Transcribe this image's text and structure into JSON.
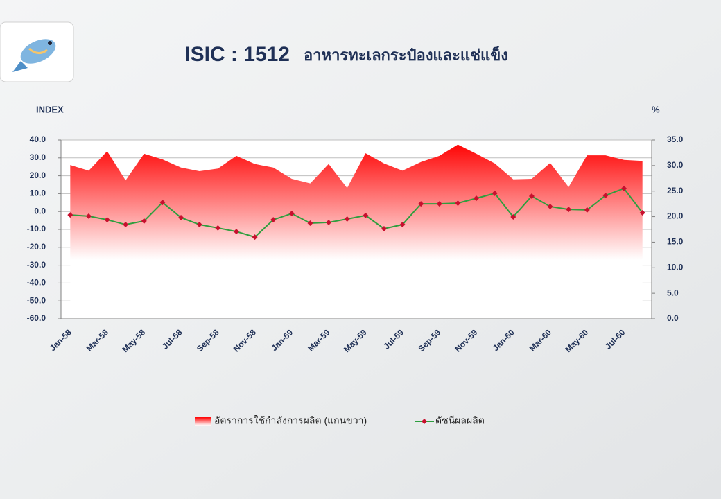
{
  "chart_data": {
    "type": "line-area",
    "title": "ISIC : 1512",
    "subtitle": "อาหารทะเลกระป๋องและแช่แข็ง",
    "ylabel": "INDEX",
    "y2label": "%",
    "categories": [
      "Jan-58",
      null,
      "Mar-58",
      null,
      "May-58",
      null,
      "Jul-58",
      null,
      "Sep-58",
      null,
      "Nov-58",
      null,
      "Jan-59",
      null,
      "Mar-59",
      null,
      "May-59",
      null,
      "Jul-59",
      null,
      "Sep-59",
      null,
      "Nov-59",
      null,
      "Jan-60",
      null,
      "Mar-60",
      null,
      "May-60",
      null,
      "Jul-60",
      null
    ],
    "series": [
      {
        "name": "อัตราการใช้กำลังการผลิต (แกนขวา)",
        "type": "area",
        "axis": "y2",
        "color": "#ff0000",
        "values": [
          30.1,
          29.0,
          32.8,
          27.1,
          32.3,
          31.2,
          29.6,
          28.9,
          29.4,
          31.9,
          30.3,
          29.6,
          27.4,
          26.5,
          30.3,
          25.6,
          32.4,
          30.4,
          29.0,
          30.7,
          31.9,
          34.1,
          32.3,
          30.4,
          27.3,
          27.4,
          30.5,
          25.8,
          32.0,
          32.0,
          31.1,
          30.9
        ]
      },
      {
        "name": "ดัชนีผลผลิต",
        "type": "line",
        "color": "#2e9e3e",
        "marker_color": "#c8102e",
        "values": [
          -1.9,
          -2.6,
          -4.6,
          -7.3,
          -5.3,
          5.1,
          -3.4,
          -7.3,
          -9.2,
          -11.2,
          -14.3,
          -4.6,
          -1.1,
          -6.5,
          -6.1,
          -4.2,
          -2.2,
          -9.6,
          -7.3,
          4.3,
          4.3,
          4.7,
          7.4,
          10.2,
          -3.0,
          8.6,
          2.8,
          1.2,
          0.9,
          9.0,
          12.9,
          -0.7
        ]
      }
    ],
    "ylim": [
      -60,
      40
    ],
    "yticks": [
      {
        "value": -60,
        "label": "-60.0"
      },
      {
        "value": -50,
        "label": "-50.0"
      },
      {
        "value": -40,
        "label": "-40.0"
      },
      {
        "value": -30,
        "label": "-30.0"
      },
      {
        "value": -20,
        "label": "-20.0"
      },
      {
        "value": -10,
        "label": "-10.0"
      },
      {
        "value": 0,
        "label": "0.0"
      },
      {
        "value": 10,
        "label": "10.0"
      },
      {
        "value": 20,
        "label": "20.0"
      },
      {
        "value": 30,
        "label": "30.0"
      },
      {
        "value": 40,
        "label": "40.0"
      }
    ],
    "y2lim": [
      0,
      35
    ],
    "y2ticks": [
      {
        "value": 0,
        "label": "0.0"
      },
      {
        "value": 5,
        "label": "5.0"
      },
      {
        "value": 10,
        "label": "10.0"
      },
      {
        "value": 15,
        "label": "15.0"
      },
      {
        "value": 20,
        "label": "20.0"
      },
      {
        "value": 25,
        "label": "25.0"
      },
      {
        "value": 30,
        "label": "30.0"
      },
      {
        "value": 35,
        "label": "35.0"
      }
    ],
    "grid": true
  }
}
